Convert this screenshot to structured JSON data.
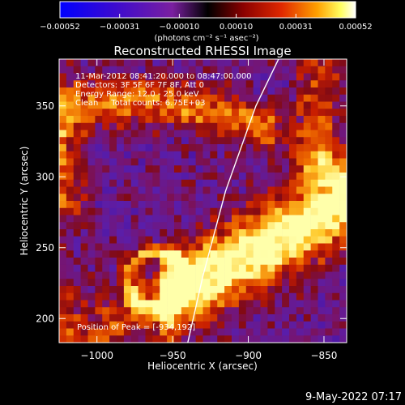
{
  "chart_data": {
    "type": "heatmap",
    "title": "Reconstructed RHESSI Image",
    "xlabel": "Heliocentric X (arcsec)",
    "ylabel": "Heliocentric Y (arcsec)",
    "xlim": [
      -1025,
      -835
    ],
    "ylim": [
      183,
      383
    ],
    "x_ticks": [
      -1000,
      -950,
      -900,
      -850
    ],
    "y_ticks": [
      200,
      250,
      300,
      350
    ],
    "x_tick_labels": [
      "−1000",
      "−950",
      "−900",
      "−850"
    ],
    "y_tick_labels": [
      "200",
      "250",
      "300",
      "350"
    ],
    "colorbar": {
      "range": [
        -0.00052,
        0.00052
      ],
      "ticks": [
        -0.00052,
        -0.00031,
        -0.0001,
        0.0001,
        0.00031,
        0.00052
      ],
      "tick_labels": [
        "−0.00052",
        "−0.00031",
        "−0.00010",
        "0.00010",
        "0.00031",
        "0.00052"
      ],
      "units_label": "(photons cm⁻² s⁻¹ asec⁻²)",
      "colors": [
        "#0000ff",
        "#4400cc",
        "#7a1fa0",
        "#000000",
        "#7a0000",
        "#dd2000",
        "#ff9a00",
        "#ffff60",
        "#ffffff"
      ]
    },
    "annotations": [
      "11-Mar-2012 08:41:20.000 to 08:47:00.000",
      "Detectors: 3F 5F 6F 7F 8F, Att 0",
      "Energy Range: 12.0 - 25.0 keV",
      "Clean     Total counts: 6.75E+03"
    ],
    "peak_label": "Position of Peak = [-934,192]",
    "limb_curve": [
      [
        -940,
        183
      ],
      [
        -930,
        230
      ],
      [
        -915,
        290
      ],
      [
        -895,
        350
      ],
      [
        -880,
        383
      ]
    ],
    "footer_date": "9-May-2022 07:17"
  }
}
